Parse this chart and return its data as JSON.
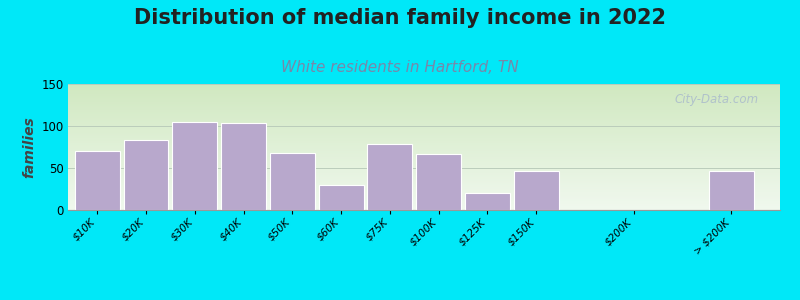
{
  "title": "Distribution of median family income in 2022",
  "subtitle": "White residents in Hartford, TN",
  "ylabel": "families",
  "categories": [
    "$10K",
    "$20K",
    "$30K",
    "$40K",
    "$50K",
    "$60K",
    "$75K",
    "$100K",
    "$125K",
    "$150K",
    "$200K",
    "> $200K"
  ],
  "values": [
    70,
    83,
    105,
    103,
    68,
    30,
    78,
    67,
    20,
    47,
    0,
    47
  ],
  "bar_color": "#b8a8cc",
  "bar_edgecolor": "#ffffff",
  "ylim": [
    0,
    150
  ],
  "yticks": [
    0,
    50,
    100,
    150
  ],
  "background_outer": "#00e8f8",
  "grad_top": "#d0e8c0",
  "grad_bottom": "#f0f8ee",
  "title_fontsize": 15,
  "title_color": "#222222",
  "subtitle_fontsize": 11,
  "subtitle_color": "#7788aa",
  "ylabel_fontsize": 10,
  "watermark_text": "City-Data.com",
  "watermark_color": "#aabbcc",
  "grid_color": "#bbccbb",
  "x_positions": [
    0,
    1,
    2,
    3,
    4,
    5,
    6,
    7,
    8,
    9,
    11,
    13
  ],
  "bar_width": 0.92
}
